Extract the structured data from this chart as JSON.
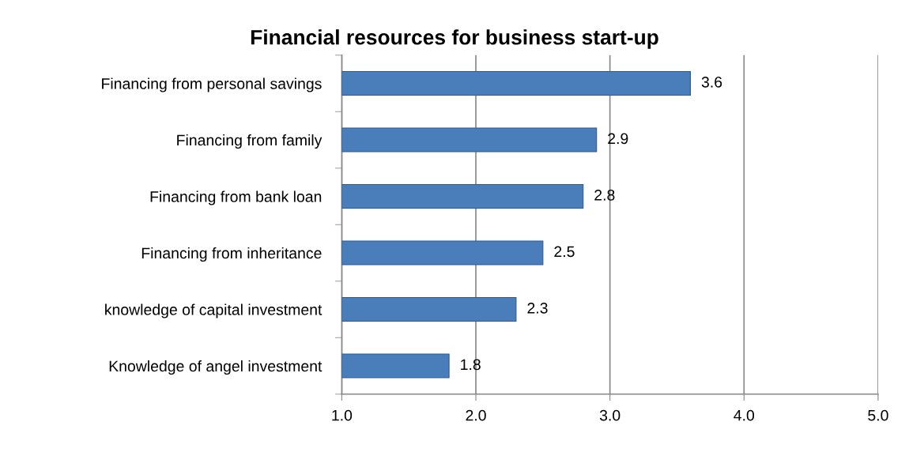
{
  "chart_data": {
    "type": "bar",
    "orientation": "horizontal",
    "title": "Financial resources for business start-up",
    "categories": [
      "Financing from personal savings",
      "Financing from family",
      "Financing from bank loan",
      "Financing from inheritance",
      "knowledge of capital investment",
      "Knowledge of angel investment"
    ],
    "values": [
      3.6,
      2.9,
      2.8,
      2.5,
      2.3,
      1.8
    ],
    "color": "#4a7ebb",
    "xlim": [
      1.0,
      5.0
    ],
    "xticks": [
      {
        "value": 1,
        "label": "1.0"
      },
      {
        "value": 2,
        "label": "2.0"
      },
      {
        "value": 3,
        "label": "3.0"
      },
      {
        "value": 4,
        "label": "4.0"
      },
      {
        "value": 5,
        "label": "5.0"
      }
    ],
    "grid": "x",
    "data_labels": true
  }
}
